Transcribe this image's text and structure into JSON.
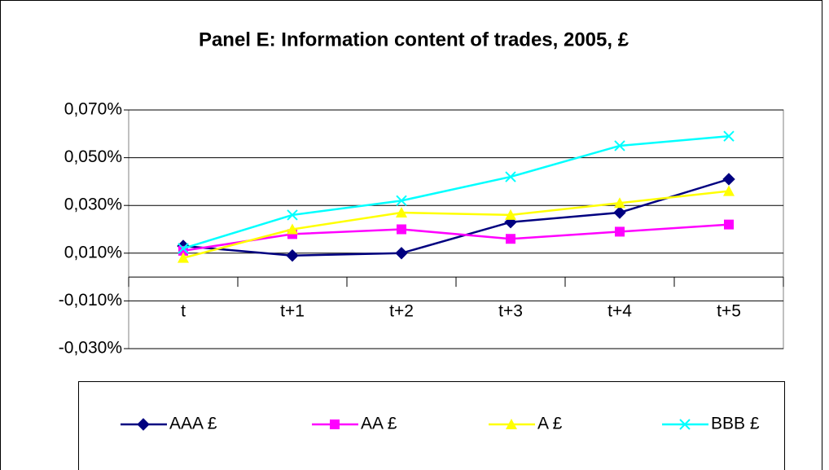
{
  "chart_data": {
    "type": "line",
    "title": "Panel E: Information content of trades, 2005, £",
    "categories": [
      "t",
      "t+1",
      "t+2",
      "t+3",
      "t+4",
      "t+5"
    ],
    "series": [
      {
        "name": "AAA £",
        "color": "#000080",
        "marker": "diamond",
        "values": [
          0.013,
          0.009,
          0.01,
          0.023,
          0.027,
          0.041
        ]
      },
      {
        "name": "AA £",
        "color": "#ff00ff",
        "marker": "square",
        "values": [
          0.011,
          0.018,
          0.02,
          0.016,
          0.019,
          0.022
        ]
      },
      {
        "name": "A £",
        "color": "#ffff00",
        "marker": "triangle",
        "values": [
          0.008,
          0.02,
          0.027,
          0.026,
          0.031,
          0.036
        ]
      },
      {
        "name": "BBB £",
        "color": "#00ffff",
        "marker": "x",
        "values": [
          0.012,
          0.026,
          0.032,
          0.042,
          0.055,
          0.059
        ]
      }
    ],
    "ylim": [
      -0.03,
      0.07
    ],
    "yticks": [
      {
        "value": -0.03,
        "label": "-0,030%"
      },
      {
        "value": -0.01,
        "label": "-0,010%"
      },
      {
        "value": 0.01,
        "label": "0,010%"
      },
      {
        "value": 0.03,
        "label": "0,030%"
      },
      {
        "value": 0.05,
        "label": "0,050%"
      },
      {
        "value": 0.07,
        "label": "0,070%"
      }
    ],
    "grid": true,
    "legend": "bottom"
  }
}
